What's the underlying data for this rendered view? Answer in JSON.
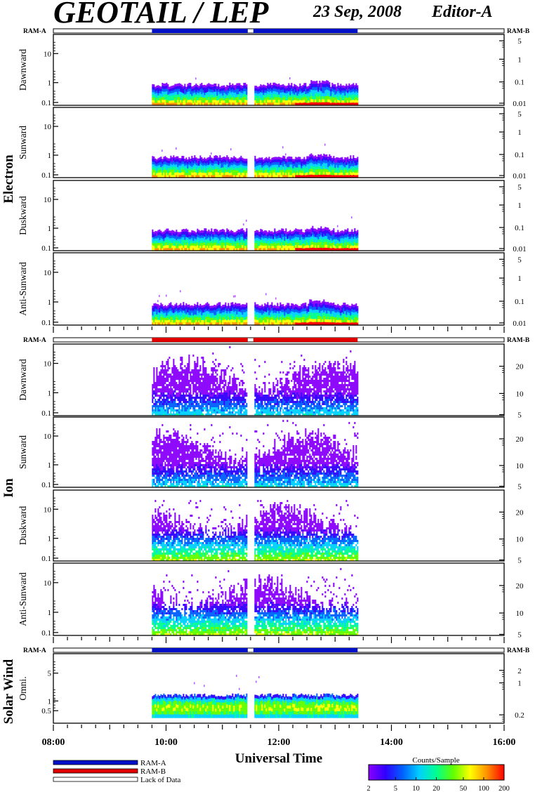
{
  "header": {
    "title": "GEOTAIL / LEP",
    "date": "23 Sep, 2008",
    "editor": "Editor-A"
  },
  "chart_data": {
    "type": "heatmap",
    "xlabel": "Universal Time",
    "x_range_hours": [
      8,
      16
    ],
    "x_tick_labels": [
      "08:00",
      "10:00",
      "12:00",
      "14:00",
      "16:00"
    ],
    "data_coverage": {
      "start": "09:45",
      "gap_start": "11:27",
      "gap_end": "11:33",
      "end": "13:24"
    },
    "mode_bar_labels": {
      "left": "RAM-A",
      "right": "RAM-B"
    },
    "groups": [
      {
        "name": "Electron",
        "mode": "RAM-A",
        "panels": [
          {
            "label": "Dawnward",
            "left_ticks": [
              "10",
              "1",
              "0.1"
            ],
            "right_ticks": [
              "5",
              "1",
              "0.1",
              "0.01"
            ]
          },
          {
            "label": "Sunward",
            "left_ticks": [
              "10",
              "1",
              "0.1"
            ],
            "right_ticks": [
              "5",
              "1",
              "0.1",
              "0.01"
            ]
          },
          {
            "label": "Duskward",
            "left_ticks": [
              "10",
              "1",
              "0.1"
            ],
            "right_ticks": [
              "5",
              "1",
              "0.1",
              "0.01"
            ]
          },
          {
            "label": "Anti-Sunward",
            "left_ticks": [
              "10",
              "1",
              "0.1"
            ],
            "right_ticks": [
              "5",
              "1",
              "0.1",
              "0.01"
            ]
          }
        ]
      },
      {
        "name": "Ion",
        "mode": "RAM-B",
        "panels": [
          {
            "label": "Dawnward",
            "left_ticks": [
              "10",
              "1",
              "0.1"
            ],
            "right_ticks": [
              "20",
              "10",
              "5"
            ]
          },
          {
            "label": "Sunward",
            "left_ticks": [
              "10",
              "1",
              "0.1"
            ],
            "right_ticks": [
              "20",
              "10",
              "5"
            ]
          },
          {
            "label": "Duskward",
            "left_ticks": [
              "10",
              "1",
              "0.1"
            ],
            "right_ticks": [
              "20",
              "10",
              "5"
            ]
          },
          {
            "label": "Anti-Sunward",
            "left_ticks": [
              "10",
              "1",
              "0.1"
            ],
            "right_ticks": [
              "20",
              "10",
              "5"
            ]
          }
        ]
      },
      {
        "name": "Solar Wind",
        "mode": "RAM-A",
        "panels": [
          {
            "label": "Omni.",
            "left_ticks": [
              "5",
              "1",
              "0.5"
            ],
            "right_ticks": [
              "2",
              "1",
              "0.2"
            ]
          }
        ]
      }
    ],
    "legend": [
      {
        "label": "RAM-A",
        "color": "#0010c8"
      },
      {
        "label": "RAM-B",
        "color": "#e00000"
      },
      {
        "label": "Lack of Data",
        "color": "#ffffff"
      }
    ],
    "colorbar": {
      "title": "Counts/Sample",
      "ticks": [
        "2",
        "5",
        "10",
        "20",
        "50",
        "100",
        "200"
      ],
      "colors": [
        "#8a00ff",
        "#3000ff",
        "#0060ff",
        "#00d0ff",
        "#00ff90",
        "#60ff00",
        "#ffff00",
        "#ff9000",
        "#ff0000"
      ]
    }
  }
}
